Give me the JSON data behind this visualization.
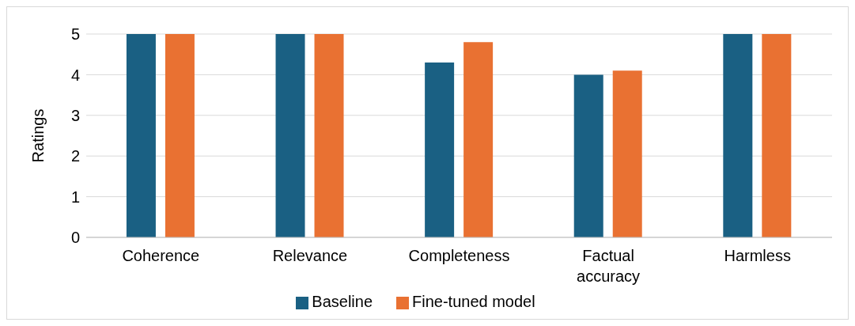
{
  "chart_data": {
    "type": "bar",
    "ylabel": "Ratings",
    "categories": [
      "Coherence",
      "Relevance",
      "Completeness",
      "Factual accuracy",
      "Harmless"
    ],
    "series": [
      {
        "name": "Baseline",
        "color": "#1a6083",
        "values": [
          5,
          5,
          4.3,
          4.0,
          5
        ]
      },
      {
        "name": "Fine-tuned model",
        "color": "#e97132",
        "values": [
          5,
          5,
          4.8,
          4.1,
          5
        ]
      }
    ],
    "ylim": [
      0,
      5
    ],
    "yticks": [
      0,
      1,
      2,
      3,
      4,
      5
    ],
    "grid": "y",
    "legend": "bottom"
  }
}
